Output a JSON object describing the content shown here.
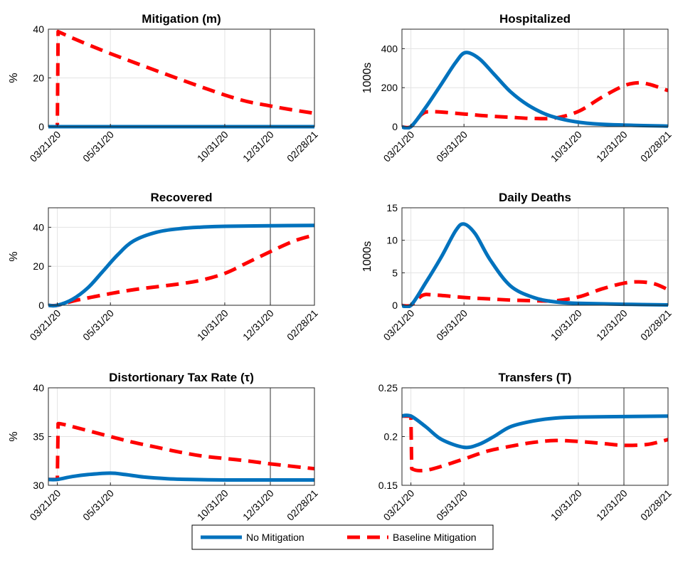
{
  "colors": {
    "no_mitigation": "#0072BD",
    "baseline_mitigation": "#FF0000"
  },
  "legend": {
    "placement": "bottom-center",
    "entries": [
      {
        "name": "No Mitigation",
        "style": "solid",
        "color": "#0072BD"
      },
      {
        "name": "Baseline Mitigation",
        "style": "dashed",
        "color": "#FF0000"
      }
    ]
  },
  "chart_data": [
    {
      "id": "mitigation",
      "type": "line",
      "title": "Mitigation (m)",
      "ylabel": "%",
      "ylim": [
        0,
        40
      ],
      "yticks": [
        0,
        20,
        40
      ],
      "ytick_labels": [
        "0",
        "20",
        "40"
      ],
      "xlim": [
        "03/09/20",
        "02/28/21"
      ],
      "xticks": [
        "03/21/20",
        "05/31/20",
        "10/31/20",
        "12/31/20",
        "02/28/21"
      ],
      "vline": "12/31/20",
      "grid": true,
      "series": [
        {
          "name": "No Mitigation",
          "x": [
            "03/09/20",
            "02/28/21"
          ],
          "values": [
            0,
            0
          ]
        },
        {
          "name": "Baseline Mitigation",
          "x": [
            "03/09/20",
            "03/21/20",
            "03/22/20",
            "05/31/20",
            "10/31/20",
            "12/31/20",
            "02/28/21"
          ],
          "values": [
            0,
            0,
            39,
            30,
            13,
            8.5,
            5.5
          ]
        }
      ]
    },
    {
      "id": "hospitalized",
      "type": "line",
      "title": "Hospitalized",
      "ylabel": "1000s",
      "ylim": [
        0,
        500
      ],
      "yticks": [
        0,
        200,
        400
      ],
      "ytick_labels": [
        "0",
        "200",
        "400"
      ],
      "xlim": [
        "03/09/20",
        "02/28/21"
      ],
      "xticks": [
        "03/21/20",
        "05/31/20",
        "10/31/20",
        "12/31/20",
        "02/28/21"
      ],
      "vline": "12/31/20",
      "grid": true,
      "series": [
        {
          "name": "No Mitigation",
          "x": [
            "03/09/20",
            "03/21/20",
            "04/10/20",
            "05/01/20",
            "05/20/20",
            "06/02/20",
            "06/20/20",
            "07/10/20",
            "08/01/20",
            "08/25/20",
            "09/20/20",
            "10/20/20",
            "11/20/20",
            "12/31/20",
            "02/28/21"
          ],
          "values": [
            0,
            0,
            100,
            220,
            330,
            380,
            350,
            270,
            180,
            110,
            60,
            30,
            15,
            8,
            3
          ]
        },
        {
          "name": "Baseline Mitigation",
          "x": [
            "03/09/20",
            "03/21/20",
            "04/05/20",
            "04/20/20",
            "05/31/20",
            "07/01/20",
            "08/01/20",
            "09/01/20",
            "10/01/20",
            "11/01/20",
            "12/01/20",
            "12/31/20",
            "01/20/21",
            "02/05/21",
            "02/28/21"
          ],
          "values": [
            0,
            0,
            65,
            77,
            65,
            55,
            48,
            42,
            45,
            80,
            150,
            210,
            225,
            215,
            185
          ]
        }
      ]
    },
    {
      "id": "recovered",
      "type": "line",
      "title": "Recovered",
      "ylabel": "%",
      "ylim": [
        0,
        50
      ],
      "yticks": [
        0,
        20,
        40
      ],
      "ytick_labels": [
        "0",
        "20",
        "40"
      ],
      "xlim": [
        "03/09/20",
        "02/28/21"
      ],
      "xticks": [
        "03/21/20",
        "05/31/20",
        "10/31/20",
        "12/31/20",
        "02/28/21"
      ],
      "vline": "12/31/20",
      "grid": true,
      "series": [
        {
          "name": "No Mitigation",
          "x": [
            "03/09/20",
            "03/21/20",
            "04/10/20",
            "05/01/20",
            "05/20/20",
            "06/10/20",
            "07/01/20",
            "08/01/20",
            "09/01/20",
            "10/01/20",
            "11/01/20",
            "12/31/20",
            "02/28/21"
          ],
          "values": [
            0,
            0,
            3,
            9,
            17,
            26,
            33,
            37.5,
            39.3,
            40.1,
            40.5,
            40.8,
            41
          ]
        },
        {
          "name": "Baseline Mitigation",
          "x": [
            "03/09/20",
            "03/21/20",
            "04/15/20",
            "05/31/20",
            "07/01/20",
            "08/01/20",
            "09/01/20",
            "10/01/20",
            "11/01/20",
            "12/01/20",
            "12/31/20",
            "02/01/21",
            "02/28/21"
          ],
          "values": [
            0,
            0,
            2.5,
            6,
            8,
            9.5,
            11,
            13,
            16.5,
            22,
            27.5,
            33,
            36
          ]
        }
      ]
    },
    {
      "id": "daily-deaths",
      "type": "line",
      "title": "Daily Deaths",
      "ylabel": "1000s",
      "ylim": [
        0,
        15
      ],
      "yticks": [
        0,
        5,
        10,
        15
      ],
      "ytick_labels": [
        "0",
        "5",
        "10",
        "15"
      ],
      "xlim": [
        "03/09/20",
        "02/28/21"
      ],
      "xticks": [
        "03/21/20",
        "05/31/20",
        "10/31/20",
        "12/31/20",
        "02/28/21"
      ],
      "vline": "12/31/20",
      "grid": true,
      "series": [
        {
          "name": "No Mitigation",
          "x": [
            "03/09/20",
            "03/21/20",
            "04/10/20",
            "05/01/20",
            "05/20/20",
            "05/31/20",
            "06/15/20",
            "07/05/20",
            "08/01/20",
            "09/01/20",
            "10/01/20",
            "11/01/20",
            "12/31/20",
            "02/28/21"
          ],
          "values": [
            0,
            0,
            3.5,
            7.5,
            11.5,
            12.5,
            11,
            7,
            3,
            1.2,
            0.5,
            0.3,
            0.15,
            0.05
          ]
        },
        {
          "name": "Baseline Mitigation",
          "x": [
            "03/09/20",
            "03/21/20",
            "04/05/20",
            "04/20/20",
            "05/31/20",
            "07/01/20",
            "08/01/20",
            "09/01/20",
            "10/01/20",
            "11/01/20",
            "12/01/20",
            "12/31/20",
            "01/20/21",
            "02/10/21",
            "02/28/21"
          ],
          "values": [
            0,
            0,
            1.5,
            1.6,
            1.2,
            1.0,
            0.8,
            0.7,
            0.7,
            1.3,
            2.5,
            3.4,
            3.6,
            3.3,
            2.4
          ]
        }
      ]
    },
    {
      "id": "tax-rate",
      "type": "line",
      "title": "Distortionary Tax Rate (τ)",
      "ylabel": "%",
      "ylim": [
        30,
        40
      ],
      "yticks": [
        30,
        35,
        40
      ],
      "ytick_labels": [
        "30",
        "35",
        "40"
      ],
      "xlim": [
        "03/09/20",
        "02/28/21"
      ],
      "xticks": [
        "03/21/20",
        "05/31/20",
        "10/31/20",
        "12/31/20",
        "02/28/21"
      ],
      "vline": "12/31/20",
      "grid": true,
      "series": [
        {
          "name": "No Mitigation",
          "x": [
            "03/09/20",
            "03/21/20",
            "04/10/20",
            "05/01/20",
            "05/31/20",
            "06/20/20",
            "07/15/20",
            "08/15/20",
            "09/15/20",
            "10/31/20",
            "12/31/20",
            "02/28/21"
          ],
          "values": [
            30.6,
            30.6,
            30.9,
            31.1,
            31.25,
            31.1,
            30.85,
            30.68,
            30.6,
            30.55,
            30.55,
            30.55
          ]
        },
        {
          "name": "Baseline Mitigation",
          "x": [
            "03/09/20",
            "03/21/20",
            "03/22/20",
            "04/01/20",
            "05/31/20",
            "07/01/20",
            "08/01/20",
            "09/01/20",
            "10/01/20",
            "10/31/20",
            "12/01/20",
            "12/31/20",
            "02/28/21"
          ],
          "values": [
            30.6,
            30.6,
            36.3,
            36.2,
            35,
            34.4,
            33.9,
            33.4,
            33,
            32.75,
            32.5,
            32.2,
            31.7
          ]
        }
      ]
    },
    {
      "id": "transfers",
      "type": "line",
      "title": "Transfers (T)",
      "ylabel": "",
      "ylim": [
        0.15,
        0.25
      ],
      "yticks": [
        0.15,
        0.2,
        0.25
      ],
      "ytick_labels": [
        "0.15",
        "0.2",
        "0.25"
      ],
      "xlim": [
        "03/09/20",
        "02/28/21"
      ],
      "xticks": [
        "03/21/20",
        "05/31/20",
        "10/31/20",
        "12/31/20",
        "02/28/21"
      ],
      "vline": "12/31/20",
      "grid": true,
      "series": [
        {
          "name": "No Mitigation",
          "x": [
            "03/09/20",
            "03/21/20",
            "04/10/20",
            "05/01/20",
            "05/31/20",
            "06/20/20",
            "07/10/20",
            "08/01/20",
            "09/01/20",
            "10/01/20",
            "10/31/20",
            "12/31/20",
            "02/28/21"
          ],
          "values": [
            0.221,
            0.221,
            0.21,
            0.197,
            0.189,
            0.192,
            0.2,
            0.21,
            0.216,
            0.219,
            0.22,
            0.2205,
            0.221
          ]
        },
        {
          "name": "Baseline Mitigation",
          "x": [
            "03/09/20",
            "03/21/20",
            "03/22/20",
            "04/01/20",
            "04/20/20",
            "05/31/20",
            "07/01/20",
            "08/01/20",
            "09/01/20",
            "10/01/20",
            "11/01/20",
            "12/01/20",
            "12/31/20",
            "02/01/21",
            "02/28/21"
          ],
          "values": [
            0.221,
            0.221,
            0.167,
            0.165,
            0.167,
            0.177,
            0.185,
            0.19,
            0.194,
            0.196,
            0.195,
            0.193,
            0.191,
            0.192,
            0.197
          ]
        }
      ]
    }
  ]
}
